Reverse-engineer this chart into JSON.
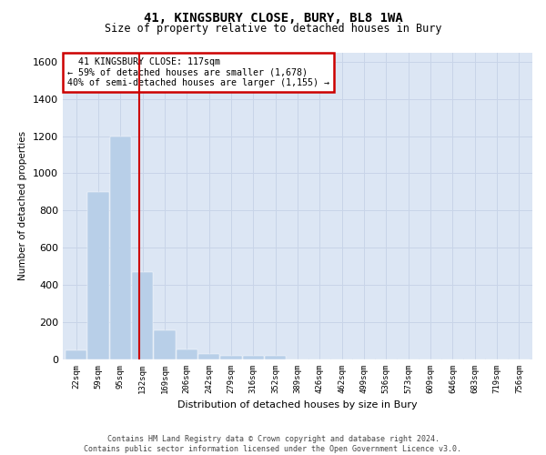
{
  "title": "41, KINGSBURY CLOSE, BURY, BL8 1WA",
  "subtitle": "Size of property relative to detached houses in Bury",
  "xlabel": "Distribution of detached houses by size in Bury",
  "ylabel": "Number of detached properties",
  "footer_line1": "Contains HM Land Registry data © Crown copyright and database right 2024.",
  "footer_line2": "Contains public sector information licensed under the Open Government Licence v3.0.",
  "annotation_line1": "  41 KINGSBURY CLOSE: 117sqm",
  "annotation_line2": "← 59% of detached houses are smaller (1,678)",
  "annotation_line3": "40% of semi-detached houses are larger (1,155) →",
  "bar_color": "#b8cfe8",
  "bar_edge_color": "#b8cfe8",
  "grid_color": "#c8d4e8",
  "background_color": "#dce6f4",
  "vline_color": "#cc0000",
  "annotation_box_color": "#cc0000",
  "bins": [
    "22sqm",
    "59sqm",
    "95sqm",
    "132sqm",
    "169sqm",
    "206sqm",
    "242sqm",
    "279sqm",
    "316sqm",
    "352sqm",
    "389sqm",
    "426sqm",
    "462sqm",
    "499sqm",
    "536sqm",
    "573sqm",
    "609sqm",
    "646sqm",
    "683sqm",
    "719sqm",
    "756sqm"
  ],
  "values": [
    50,
    900,
    1200,
    470,
    155,
    55,
    28,
    20,
    18,
    18,
    0,
    0,
    0,
    0,
    0,
    0,
    0,
    0,
    0,
    0,
    0
  ],
  "ylim": [
    0,
    1650
  ],
  "yticks": [
    0,
    200,
    400,
    600,
    800,
    1000,
    1200,
    1400,
    1600
  ],
  "vline_bin_index": 2.85,
  "fig_width": 6.0,
  "fig_height": 5.0,
  "dpi": 100
}
